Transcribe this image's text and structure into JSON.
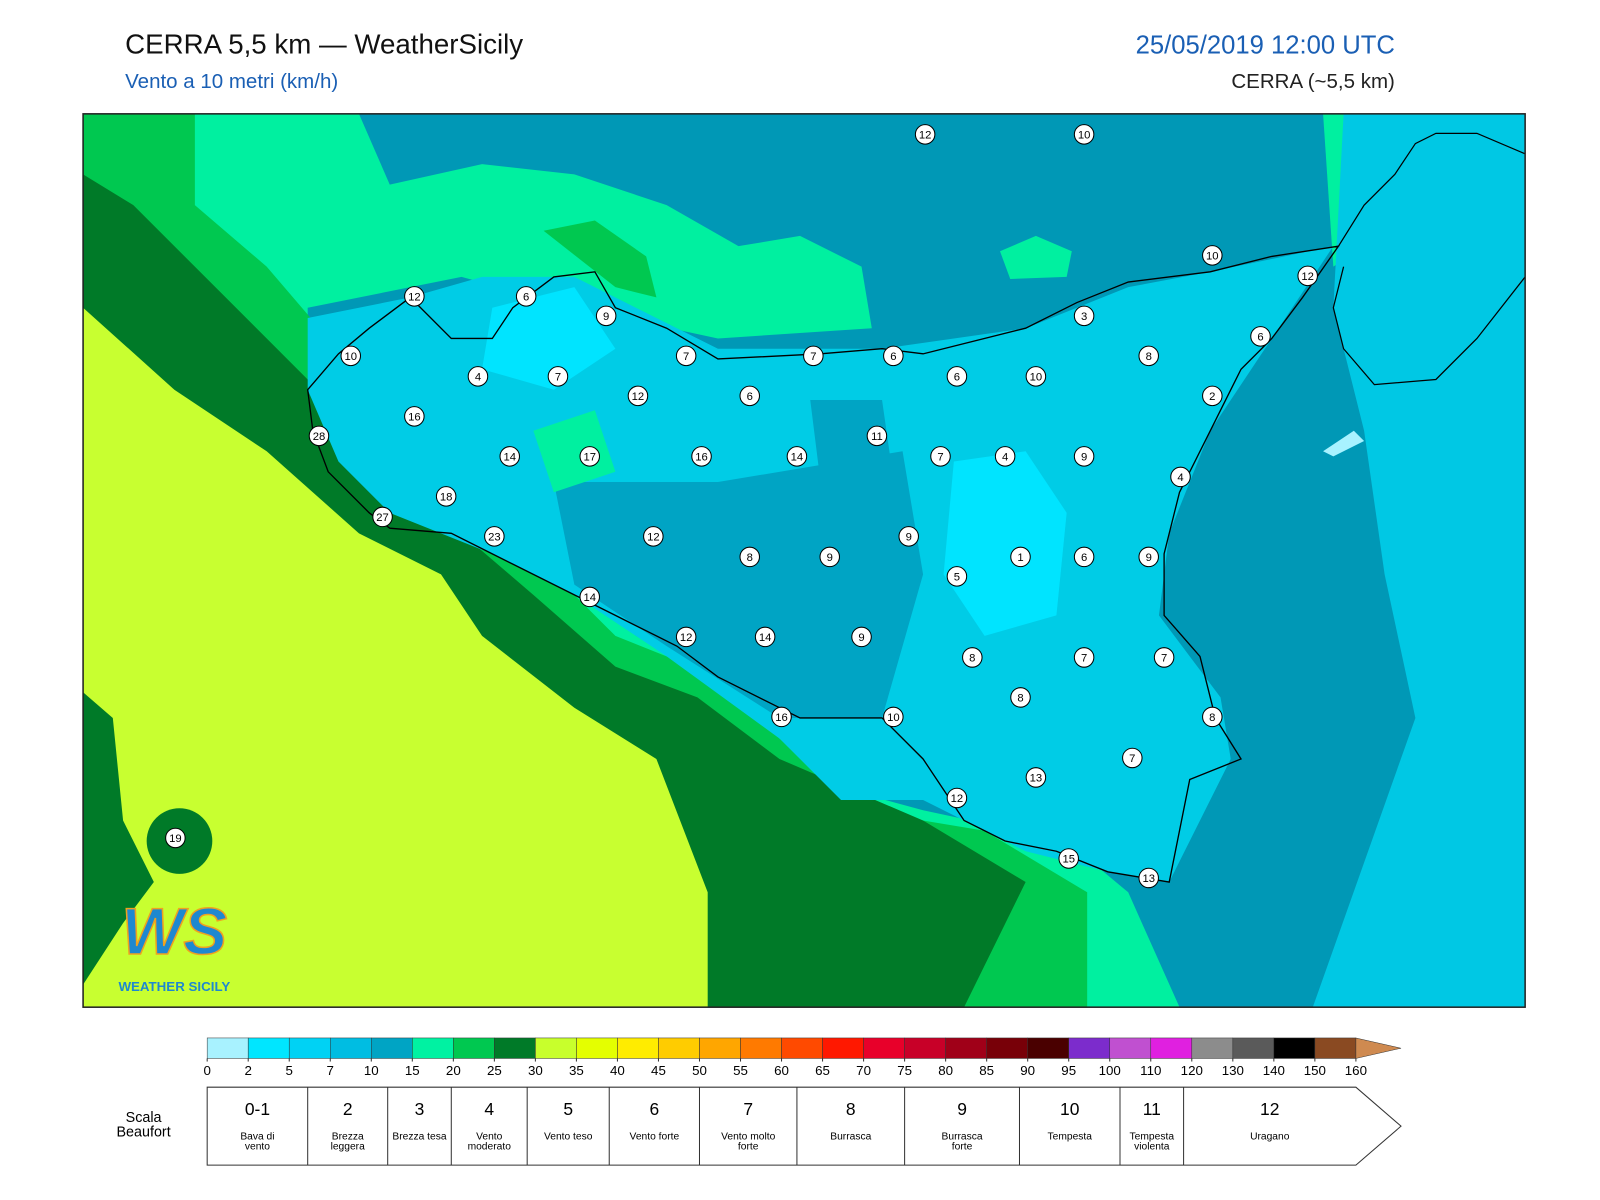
{
  "header": {
    "title": "CERRA 5,5 km — WeatherSicily",
    "subtitle": "Vento a 10 metri (km/h)",
    "datetime": "25/05/2019 12:00 UTC",
    "model": "CERRA (~5,5 km)"
  },
  "station_labels": [
    12,
    10,
    10,
    12,
    12,
    6,
    9,
    3,
    6,
    10,
    7,
    7,
    6,
    8,
    4,
    7,
    6,
    10,
    12,
    6,
    2,
    16,
    11,
    28,
    14,
    17,
    16,
    14,
    7,
    4,
    9,
    4,
    18,
    27,
    23,
    12,
    9,
    8,
    9,
    1,
    6,
    9,
    5,
    14,
    12,
    14,
    9,
    8,
    7,
    7,
    8,
    16,
    10,
    8,
    7,
    13,
    12,
    19,
    15,
    13
  ],
  "colorbar": {
    "ticks": [
      0,
      2,
      5,
      7,
      10,
      15,
      20,
      25,
      30,
      35,
      40,
      45,
      50,
      55,
      60,
      65,
      70,
      75,
      80,
      85,
      90,
      95,
      100,
      110,
      120,
      130,
      140,
      150,
      160
    ],
    "colors": [
      "#a8f2ff",
      "#00e6ff",
      "#00d2f4",
      "#00bde2",
      "#00a4c4",
      "#00f2a2",
      "#00c850",
      "#007a28",
      "#c8ff2c",
      "#e4ff00",
      "#ffec00",
      "#ffcc00",
      "#ffa600",
      "#ff7a00",
      "#ff4a00",
      "#ff1800",
      "#e8002a",
      "#c80028",
      "#a00018",
      "#780008",
      "#4a0000",
      "#7c2ccc",
      "#c050d0",
      "#e020e0",
      "#8c8c8c",
      "#5a5a5a",
      "#000000",
      "#8a4a22"
    ],
    "over_color": "#cf8a50"
  },
  "beaufort": {
    "title": "Scala Beaufort",
    "levels": [
      {
        "force": "0-1",
        "label": "Bava di vento"
      },
      {
        "force": 2,
        "label": "Brezza leggera"
      },
      {
        "force": 3,
        "label": "Brezza tesa"
      },
      {
        "force": 4,
        "label": "Vento moderato"
      },
      {
        "force": 5,
        "label": "Vento teso"
      },
      {
        "force": 6,
        "label": "Vento forte"
      },
      {
        "force": 7,
        "label": "Vento molto forte"
      },
      {
        "force": 8,
        "label": "Burrasca"
      },
      {
        "force": 9,
        "label": "Burrasca forte"
      },
      {
        "force": 10,
        "label": "Tempesta"
      },
      {
        "force": 11,
        "label": "Tempesta violenta"
      },
      {
        "force": 12,
        "label": "Uragano"
      }
    ]
  },
  "logo": {
    "mark": "WS",
    "name": "WEATHER SICILY"
  }
}
